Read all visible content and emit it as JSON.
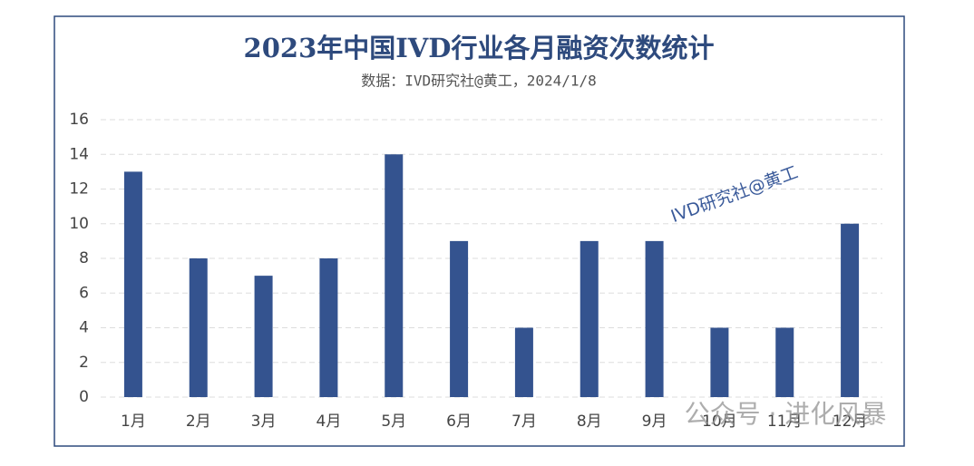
{
  "chart_data": {
    "type": "bar",
    "title": "2023年中国IVD行业各月融资次数统计",
    "subtitle": "数据：IVD研究社@黄工，2024/1/8",
    "categories": [
      "1月",
      "2月",
      "3月",
      "4月",
      "5月",
      "6月",
      "7月",
      "8月",
      "9月",
      "10月",
      "11月",
      "12月"
    ],
    "values": [
      13,
      8,
      7,
      8,
      14,
      9,
      4,
      9,
      9,
      4,
      4,
      10
    ],
    "color": "#34538f",
    "ylim": [
      0,
      16
    ],
    "yticks": [
      0,
      2,
      4,
      6,
      8,
      10,
      12,
      14,
      16
    ],
    "grid": true,
    "watermark": "IVD研究社@黄工",
    "footer_watermark": "公众号 · 进化风暴"
  }
}
